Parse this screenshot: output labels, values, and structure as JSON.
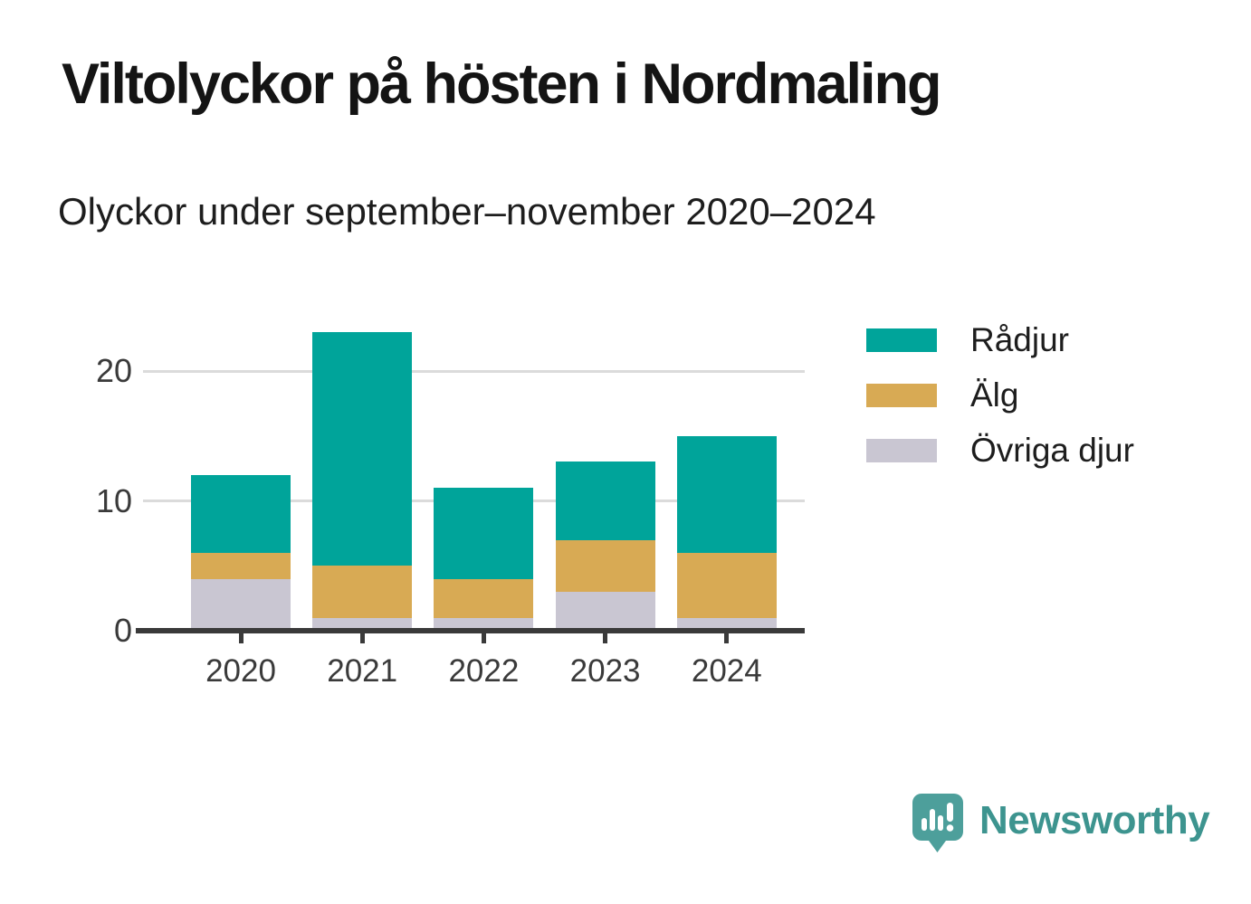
{
  "title": "Viltolyckor på hösten i Nordmaling",
  "subtitle": "Olyckor under september–november 2020–2024",
  "chart_data": {
    "type": "bar",
    "stacked": true,
    "title": "Viltolyckor på hösten i Nordmaling",
    "subtitle": "Olyckor under september–november 2020–2024",
    "categories": [
      "2020",
      "2021",
      "2022",
      "2023",
      "2024"
    ],
    "series": [
      {
        "name": "Rådjur",
        "color": "#00a49a",
        "values": [
          6,
          18,
          7,
          6,
          9
        ]
      },
      {
        "name": "Älg",
        "color": "#d8aa54",
        "values": [
          2,
          4,
          3,
          4,
          5
        ]
      },
      {
        "name": "Övriga djur",
        "color": "#c9c6d2",
        "values": [
          4,
          1,
          1,
          3,
          1
        ]
      }
    ],
    "stack_order_bottom_to_top": [
      "Övriga djur",
      "Älg",
      "Rådjur"
    ],
    "totals": [
      12,
      23,
      11,
      13,
      15
    ],
    "xlabel": "",
    "ylabel": "",
    "yticks": [
      0,
      10,
      20
    ],
    "ylim": [
      0,
      25
    ],
    "grid": "horizontal",
    "legend_position": "right"
  },
  "legend": {
    "items": [
      {
        "label": "Rådjur",
        "color": "#00a49a"
      },
      {
        "label": "Älg",
        "color": "#d8aa54"
      },
      {
        "label": "Övriga djur",
        "color": "#c9c6d2"
      }
    ]
  },
  "axis": {
    "y_tick_labels": [
      "0",
      "10",
      "20"
    ],
    "x_tick_labels": [
      "2020",
      "2021",
      "2022",
      "2023",
      "2024"
    ]
  },
  "branding": {
    "logo_text": "Newsworthy",
    "logo_icon": "newsworthy-speech-bubble-barchart-icon",
    "logo_color": "#3d948f",
    "icon_color": "#4d9f9b"
  },
  "colors": {
    "radjur": "#00a49a",
    "alg": "#d8aa54",
    "ovriga_djur": "#c9c6d2",
    "axis": "#3a3a3a",
    "gridline": "#dbdbdb",
    "background": "#ffffff"
  }
}
